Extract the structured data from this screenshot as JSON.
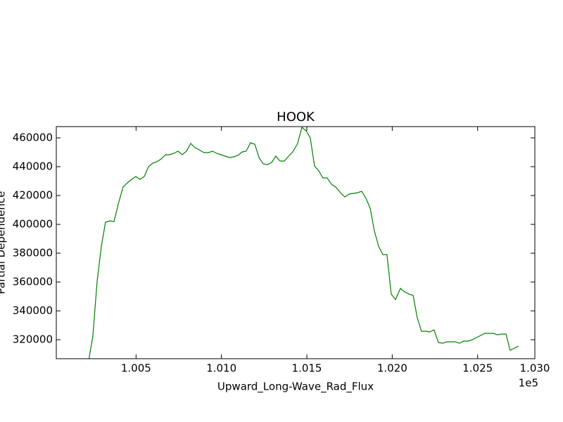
{
  "chart_data": {
    "type": "line",
    "title": "HOOK",
    "x_label": "Upward_Long-Wave_Rad_Flux",
    "y_label": "Partial Dependence",
    "x_offset_label": "1e5",
    "xlim": [
      100033,
      102835
    ],
    "ylim": [
      306830,
      467800
    ],
    "xticks": [
      {
        "value": 100500,
        "label": "1.005"
      },
      {
        "value": 101000,
        "label": "1.010"
      },
      {
        "value": 101500,
        "label": "1.015"
      },
      {
        "value": 102000,
        "label": "1.020"
      },
      {
        "value": 102500,
        "label": "1.025"
      },
      {
        "value": 103000,
        "label": "1.030"
      }
    ],
    "yticks": [
      320000,
      340000,
      360000,
      380000,
      400000,
      420000,
      440000,
      460000
    ],
    "grid": false,
    "series": [
      {
        "color": "#008000",
        "x": [
          100223,
          100247,
          100272,
          100297,
          100321,
          100346,
          100371,
          100396,
          100424,
          100449,
          100474,
          100499,
          100523,
          100548,
          100573,
          100597,
          100622,
          100647,
          100672,
          100696,
          100721,
          100746,
          100770,
          100795,
          100820,
          100845,
          100869,
          100898,
          100923,
          100948,
          100972,
          100997,
          101022,
          101047,
          101071,
          101096,
          101121,
          101145,
          101170,
          101195,
          101220,
          101244,
          101269,
          101294,
          101318,
          101343,
          101368,
          101393,
          101417,
          101446,
          101471,
          101496,
          101520,
          101545,
          101570,
          101594,
          101619,
          101644,
          101669,
          101697,
          101722,
          101747,
          101772,
          101796,
          101821,
          101846,
          101871,
          101895,
          101920,
          101945,
          101969,
          101994,
          102019,
          102048,
          102072,
          102097,
          102122,
          102146,
          102171,
          102196,
          102220,
          102245,
          102270,
          102295,
          102319,
          102344,
          102369,
          102394,
          102418,
          102443,
          102468,
          102493,
          102517,
          102542,
          102567,
          102592,
          102616,
          102641,
          102666,
          102690,
          102740
        ],
        "values": [
          305850,
          322436,
          360484,
          384874,
          401459,
          402435,
          401947,
          414142,
          425849,
          428776,
          431215,
          433166,
          431215,
          433166,
          439995,
          442434,
          443410,
          445361,
          448288,
          448288,
          449264,
          450727,
          448288,
          450727,
          456093,
          453166,
          451703,
          449751,
          449751,
          450727,
          449264,
          448288,
          447312,
          446337,
          446825,
          447800,
          450239,
          450727,
          456581,
          455605,
          446337,
          441947,
          441459,
          442922,
          447312,
          443898,
          443898,
          447312,
          450239,
          456093,
          467312,
          464873,
          459995,
          440483,
          437069,
          432191,
          432191,
          427800,
          425849,
          421947,
          419020,
          420971,
          421459,
          421947,
          422922,
          418044,
          411215,
          395606,
          384874,
          379020,
          379020,
          351704,
          347800,
          355606,
          353167,
          351704,
          350728,
          335606,
          325850,
          325850,
          325362,
          326826,
          318045,
          317558,
          318533,
          318533,
          318533,
          317558,
          319021,
          319021,
          319997,
          321460,
          322923,
          324387,
          324387,
          324387,
          323411,
          323899,
          323899,
          312680,
          315606
        ]
      }
    ]
  }
}
